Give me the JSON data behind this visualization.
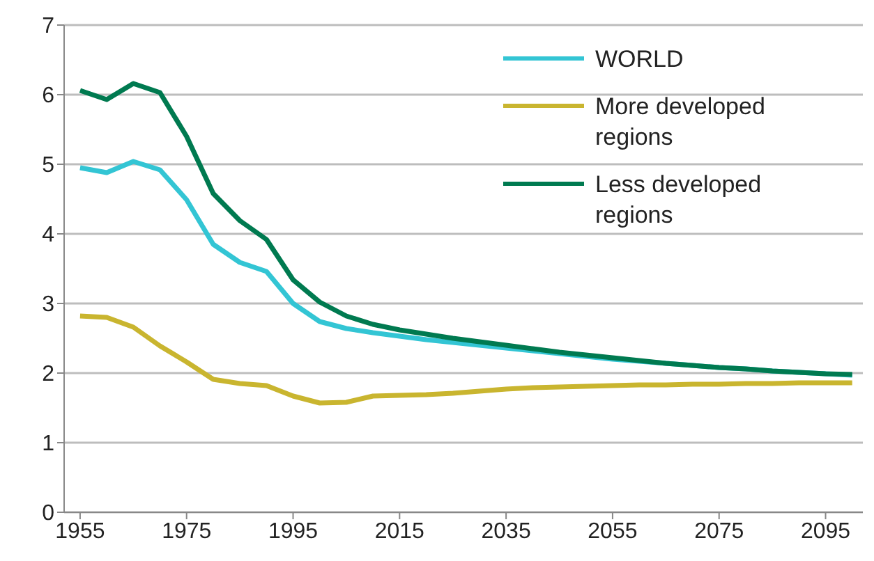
{
  "chart_data": {
    "type": "line",
    "x": [
      1955,
      1960,
      1965,
      1970,
      1975,
      1980,
      1985,
      1990,
      1995,
      2000,
      2005,
      2010,
      2015,
      2020,
      2025,
      2030,
      2035,
      2040,
      2045,
      2050,
      2055,
      2060,
      2065,
      2070,
      2075,
      2080,
      2085,
      2090,
      2095,
      2100
    ],
    "series": [
      {
        "name": "WORLD",
        "color": "#33c5d4",
        "values": [
          4.95,
          4.88,
          5.04,
          4.92,
          4.49,
          3.85,
          3.59,
          3.46,
          3.0,
          2.74,
          2.64,
          2.58,
          2.53,
          2.48,
          2.44,
          2.4,
          2.36,
          2.32,
          2.28,
          2.24,
          2.2,
          2.17,
          2.14,
          2.11,
          2.08,
          2.06,
          2.03,
          2.01,
          1.99,
          1.97
        ]
      },
      {
        "name": "More developed regions",
        "color": "#c9b52f",
        "values": [
          2.82,
          2.8,
          2.66,
          2.39,
          2.16,
          1.91,
          1.85,
          1.82,
          1.67,
          1.57,
          1.58,
          1.67,
          1.68,
          1.69,
          1.71,
          1.74,
          1.77,
          1.79,
          1.8,
          1.81,
          1.82,
          1.83,
          1.83,
          1.84,
          1.84,
          1.85,
          1.85,
          1.86,
          1.86,
          1.86
        ]
      },
      {
        "name": "Less developed regions",
        "color": "#007a50",
        "values": [
          6.06,
          5.93,
          6.16,
          6.03,
          5.4,
          4.58,
          4.19,
          3.92,
          3.34,
          3.02,
          2.82,
          2.7,
          2.62,
          2.56,
          2.5,
          2.45,
          2.4,
          2.35,
          2.3,
          2.26,
          2.22,
          2.18,
          2.14,
          2.11,
          2.08,
          2.06,
          2.03,
          2.01,
          1.99,
          1.98
        ]
      }
    ],
    "xlim": [
      1952,
      2102
    ],
    "xticks": [
      1955,
      1975,
      1995,
      2015,
      2035,
      2055,
      2075,
      2095
    ],
    "ylim": [
      0,
      7
    ],
    "yticks": [
      0,
      1,
      2,
      3,
      4,
      5,
      6,
      7
    ],
    "grid": "y",
    "legend": "top right",
    "marker": "none",
    "line_style": "solid"
  }
}
